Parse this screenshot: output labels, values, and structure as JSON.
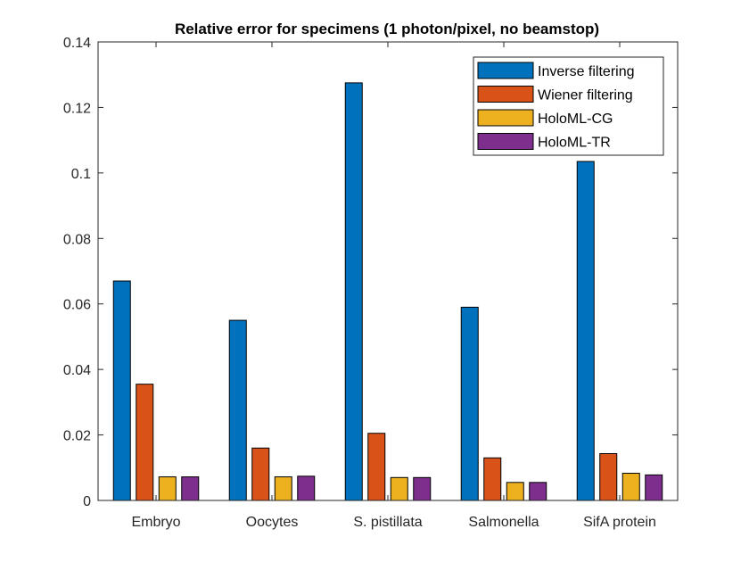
{
  "chart_data": {
    "type": "bar",
    "title": "Relative error for specimens (1 photon/pixel, no beamstop)",
    "xlabel": "",
    "ylabel": "",
    "categories": [
      "Embryo",
      "Oocytes",
      "S. pistillata",
      "Salmonella",
      "SifA protein"
    ],
    "ylim": [
      0,
      0.14
    ],
    "yticks": [
      "0",
      "0.02",
      "0.04",
      "0.06",
      "0.08",
      "0.1",
      "0.12",
      "0.14"
    ],
    "grid": false,
    "legend_position": "top-right",
    "series": [
      {
        "name": "Inverse filtering",
        "color": "#0072BD",
        "values": [
          0.067,
          0.055,
          0.1275,
          0.059,
          0.1035
        ]
      },
      {
        "name": "Wiener filtering",
        "color": "#D95319",
        "values": [
          0.0355,
          0.016,
          0.0205,
          0.013,
          0.0143
        ]
      },
      {
        "name": "HoloML-CG",
        "color": "#EDB120",
        "values": [
          0.0072,
          0.0072,
          0.007,
          0.0055,
          0.0083
        ]
      },
      {
        "name": "HoloML-TR",
        "color": "#7E2F8E",
        "values": [
          0.0072,
          0.0074,
          0.007,
          0.0055,
          0.0078
        ]
      }
    ]
  }
}
